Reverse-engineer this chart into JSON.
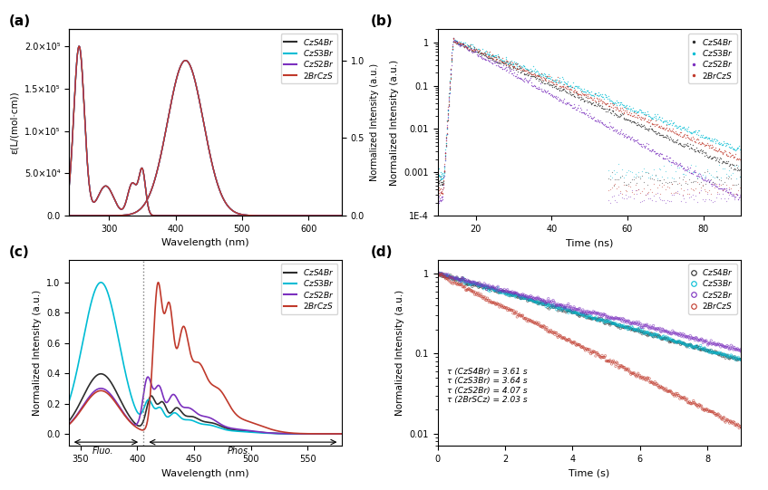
{
  "colors": {
    "CzS4Br": "#2d2d2d",
    "CzS3Br": "#00bcd4",
    "CzS2Br": "#7b2fbe",
    "2BrCzS": "#c0392b"
  },
  "panel_labels": [
    "(a)",
    "(b)",
    "(c)",
    "(d)"
  ],
  "legend_labels": [
    "CzS4Br",
    "CzS3Br",
    "CzS2Br",
    "2BrCzS"
  ],
  "ax_a": {
    "xlabel": "Wavelength (nm)",
    "ylabel_left": "ε(L/(mol·cm))",
    "ylabel_right": "Normalized Intensity (a.u.)",
    "xlim": [
      240,
      650
    ],
    "ylim_left": [
      0,
      220000.0
    ],
    "ylim_right": [
      0,
      1.2
    ],
    "yticks_left": [
      0.0,
      50000.0,
      100000.0,
      150000.0,
      200000.0
    ],
    "ytick_labels_left": [
      "0.0",
      "5.0×10⁴",
      "1.0×10⁵",
      "1.5×10⁵",
      "2.0×10⁵"
    ],
    "yticks_right": [
      0.0,
      0.5,
      1.0
    ],
    "xticks": [
      300,
      400,
      500,
      600
    ]
  },
  "ax_b": {
    "xlabel": "Time (ns)",
    "ylabel": "Normalized Intensity (a.u.)",
    "xlim": [
      10,
      90
    ],
    "ylim": [
      0.0001,
      2
    ],
    "xticks": [
      20,
      40,
      60,
      80
    ]
  },
  "ax_c": {
    "xlabel": "Wavelength (nm)",
    "ylabel": "Normalized Intensity (a.u.)",
    "xlim": [
      340,
      580
    ],
    "ylim": [
      -0.08,
      1.15
    ],
    "xticks": [
      350,
      400,
      450,
      500,
      550
    ],
    "fluo_label": "Fluo.",
    "phos_label": "Phos.",
    "dotted_line_x": 405
  },
  "ax_d": {
    "xlabel": "Time (s)",
    "ylabel": "Normalized Intensity (a.u.)",
    "xlim": [
      0,
      9
    ],
    "ylim": [
      0.007,
      1.5
    ],
    "xticks": [
      0,
      2,
      4,
      6,
      8
    ],
    "tau_labels": [
      "τ (CzS4Br) = 3.61 s",
      "τ (CzS3Br) = 3.64 s",
      "τ (CzS2Br) = 4.07 s",
      "τ (2BrSCz) = 2.03 s"
    ]
  },
  "background_color": "#ffffff"
}
